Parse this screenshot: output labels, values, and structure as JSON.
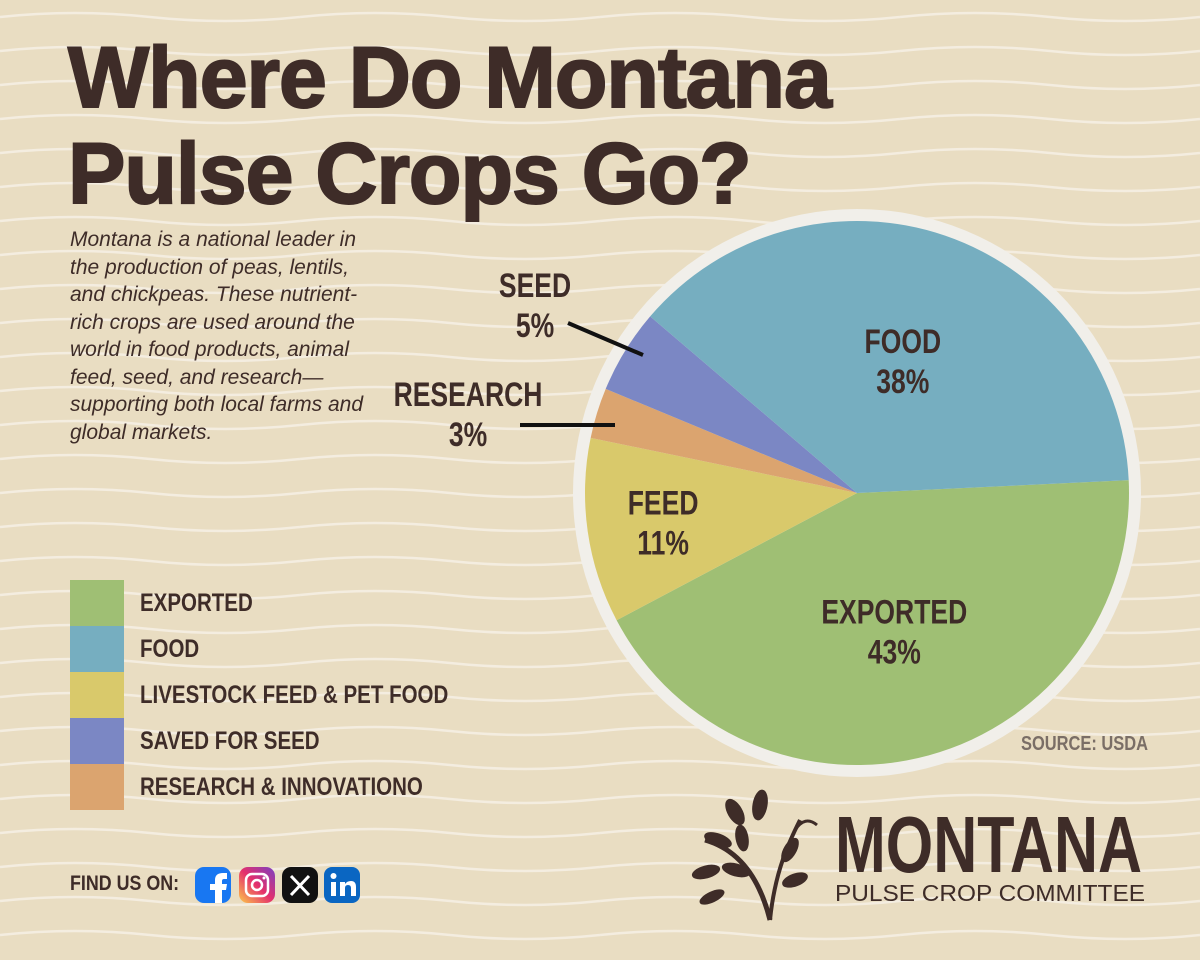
{
  "title": "Where Do Montana Pulse Crops Go?",
  "description": "Montana is a national leader in the production of peas, lentils, and chickpeas. These nutrient-rich crops are used around the world in food products, animal feed, seed, and research—supporting both local farms and global markets.",
  "chart_data": {
    "type": "pie",
    "categories": [
      "EXPORTED",
      "FOOD",
      "LIVESTOCK FEED & PET FOOD",
      "SAVED FOR SEED",
      "RESEARCH & INNOVATIONO"
    ],
    "slice_labels": [
      "EXPORTED",
      "FOOD",
      "FEED",
      "SEED",
      "RESEARCH"
    ],
    "values": [
      43,
      38,
      11,
      5,
      3
    ],
    "value_labels": [
      "43%",
      "38%",
      "11%",
      "5%",
      "3%"
    ],
    "colors": [
      "#9fbf74",
      "#76aec0",
      "#d9c96b",
      "#7b87c4",
      "#dba46f"
    ],
    "legend": true
  },
  "source": "SOURCE: USDA",
  "footer": {
    "find_us": "FIND US ON:"
  },
  "logo": {
    "name": "MONTANA",
    "subtitle": "PULSE CROP COMMITTEE"
  }
}
